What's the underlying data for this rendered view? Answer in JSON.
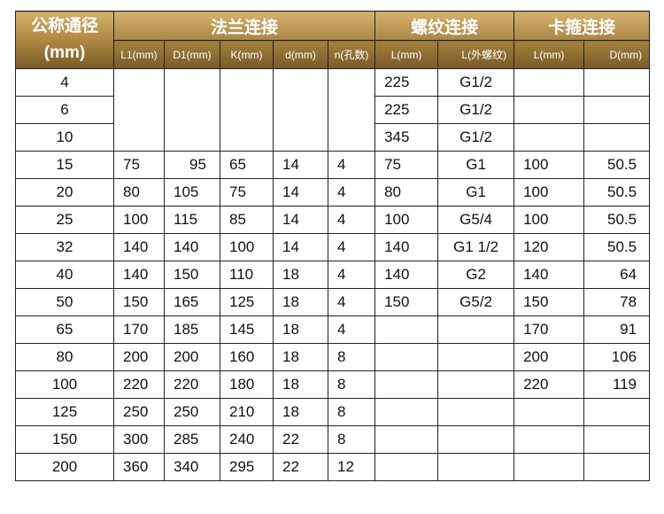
{
  "header": {
    "corner": [
      "公称通径",
      "(mm)"
    ],
    "groups": [
      "法兰连接",
      "螺纹连接",
      "卡箍连接"
    ],
    "sub": [
      "L1(mm)",
      "D1(mm)",
      "K(mm)",
      "d(mm)",
      "n(孔数)",
      "L(mm)",
      "L(外螺纹)",
      "L(mm)",
      "D(mm)"
    ]
  },
  "rows": [
    [
      "4",
      "",
      "",
      "",
      "",
      "",
      "225",
      "G1/2",
      "",
      ""
    ],
    [
      "6",
      "",
      "",
      "",
      "",
      "",
      "225",
      "G1/2",
      "",
      ""
    ],
    [
      "10",
      "",
      "",
      "",
      "",
      "",
      "345",
      "G1/2",
      "",
      ""
    ],
    [
      "15",
      "75",
      "95",
      "65",
      "14",
      "4",
      "75",
      "G1",
      "100",
      "50.5"
    ],
    [
      "20",
      "80",
      "105",
      "75",
      "14",
      "4",
      "80",
      "G1",
      "100",
      "50.5"
    ],
    [
      "25",
      "100",
      "115",
      "85",
      "14",
      "4",
      "100",
      "G5/4",
      "100",
      "50.5"
    ],
    [
      "32",
      "140",
      "140",
      "100",
      "14",
      "4",
      "140",
      "G1  1/2",
      "120",
      "50.5"
    ],
    [
      "40",
      "140",
      "150",
      "110",
      "18",
      "4",
      "140",
      "G2",
      "140",
      "64"
    ],
    [
      "50",
      "150",
      "165",
      "125",
      "18",
      "4",
      "150",
      "G5/2",
      "150",
      "78"
    ],
    [
      "65",
      "170",
      "185",
      "145",
      "18",
      "4",
      "",
      "",
      "170",
      "91"
    ],
    [
      "80",
      "200",
      "200",
      "160",
      "18",
      "8",
      "",
      "",
      "200",
      "106"
    ],
    [
      "100",
      "220",
      "220",
      "180",
      "18",
      "8",
      "",
      "",
      "220",
      "119"
    ],
    [
      "125",
      "250",
      "250",
      "210",
      "18",
      "8",
      "",
      "",
      "",
      ""
    ],
    [
      "150",
      "300",
      "285",
      "240",
      "22",
      "8",
      "",
      "",
      "",
      ""
    ],
    [
      "200",
      "360",
      "340",
      "295",
      "22",
      "12",
      "",
      "",
      "",
      ""
    ]
  ]
}
